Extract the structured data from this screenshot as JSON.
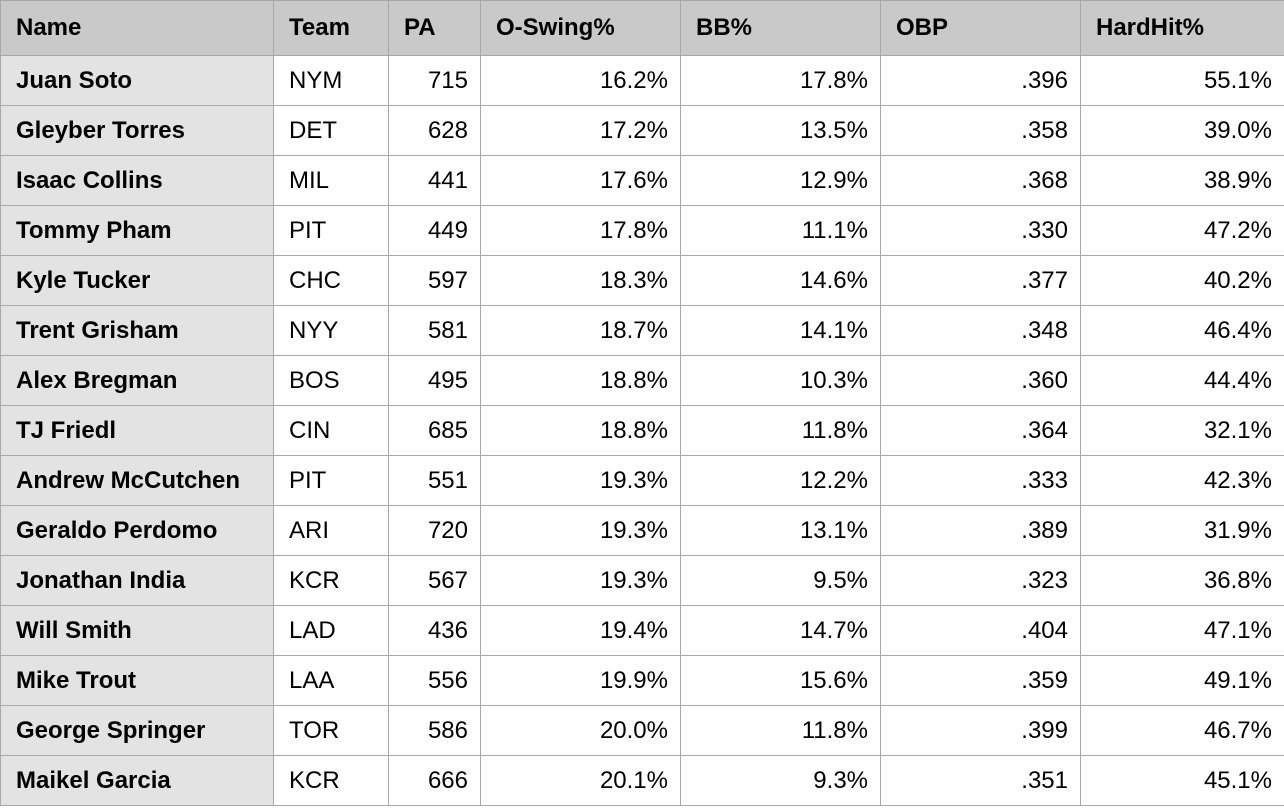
{
  "table": {
    "headers": [
      "Name",
      "Team",
      "PA",
      "O-Swing%",
      "BB%",
      "OBP",
      "HardHit%"
    ],
    "rows": [
      [
        "Juan Soto",
        "NYM",
        "715",
        "16.2%",
        "17.8%",
        ".396",
        "55.1%"
      ],
      [
        "Gleyber Torres",
        "DET",
        "628",
        "17.2%",
        "13.5%",
        ".358",
        "39.0%"
      ],
      [
        "Isaac Collins",
        "MIL",
        "441",
        "17.6%",
        "12.9%",
        ".368",
        "38.9%"
      ],
      [
        "Tommy Pham",
        "PIT",
        "449",
        "17.8%",
        "11.1%",
        ".330",
        "47.2%"
      ],
      [
        "Kyle Tucker",
        "CHC",
        "597",
        "18.3%",
        "14.6%",
        ".377",
        "40.2%"
      ],
      [
        "Trent Grisham",
        "NYY",
        "581",
        "18.7%",
        "14.1%",
        ".348",
        "46.4%"
      ],
      [
        "Alex Bregman",
        "BOS",
        "495",
        "18.8%",
        "10.3%",
        ".360",
        "44.4%"
      ],
      [
        "TJ Friedl",
        "CIN",
        "685",
        "18.8%",
        "11.8%",
        ".364",
        "32.1%"
      ],
      [
        "Andrew McCutchen",
        "PIT",
        "551",
        "19.3%",
        "12.2%",
        ".333",
        "42.3%"
      ],
      [
        "Geraldo Perdomo",
        "ARI",
        "720",
        "19.3%",
        "13.1%",
        ".389",
        "31.9%"
      ],
      [
        "Jonathan India",
        "KCR",
        "567",
        "19.3%",
        "9.5%",
        ".323",
        "36.8%"
      ],
      [
        "Will Smith",
        "LAD",
        "436",
        "19.4%",
        "14.7%",
        ".404",
        "47.1%"
      ],
      [
        "Mike Trout",
        "LAA",
        "556",
        "19.9%",
        "15.6%",
        ".359",
        "49.1%"
      ],
      [
        "George Springer",
        "TOR",
        "586",
        "20.0%",
        "11.8%",
        ".399",
        "46.7%"
      ],
      [
        "Maikel Garcia",
        "KCR",
        "666",
        "20.1%",
        "9.3%",
        ".351",
        "45.1%"
      ]
    ]
  }
}
